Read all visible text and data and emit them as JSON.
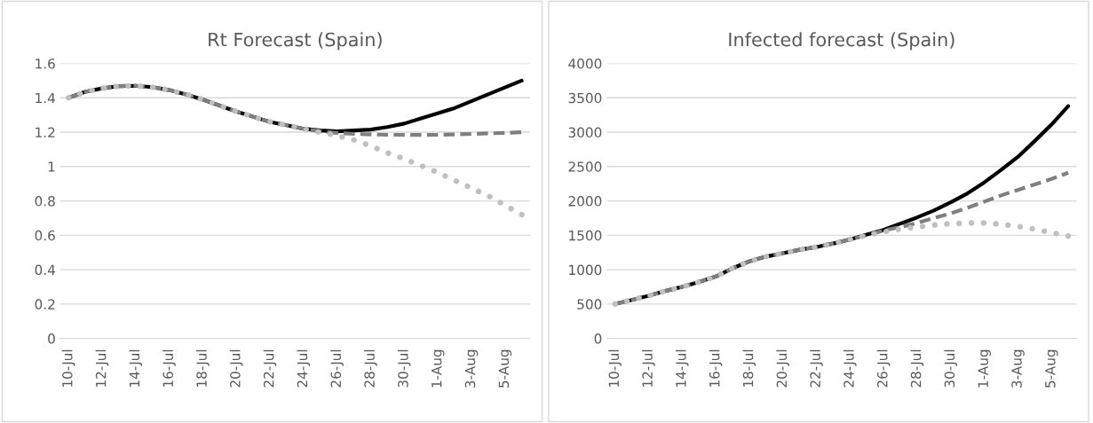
{
  "chart_data": [
    {
      "type": "line",
      "title": "Rt Forecast (Spain)",
      "categories": [
        "10-Jul",
        null,
        "12-Jul",
        null,
        "14-Jul",
        null,
        "16-Jul",
        null,
        "18-Jul",
        null,
        "20-Jul",
        null,
        "22-Jul",
        null,
        "24-Jul",
        null,
        "26-Jul",
        null,
        "28-Jul",
        null,
        "30-Jul",
        null,
        "1-Aug",
        null,
        "3-Aug",
        null,
        "5-Aug",
        null
      ],
      "series": [
        {
          "color": "#000000",
          "line_style": "solid",
          "values": [
            1.4,
            1.435,
            1.455,
            1.468,
            1.47,
            1.462,
            1.445,
            1.42,
            1.39,
            1.355,
            1.32,
            1.29,
            1.26,
            1.24,
            1.22,
            1.21,
            1.205,
            1.21,
            1.215,
            1.23,
            1.25,
            1.28,
            1.31,
            1.34,
            1.38,
            1.42,
            1.46,
            1.5
          ]
        },
        {
          "color": "#7f7f7f",
          "line_style": "dashed",
          "values": [
            1.4,
            1.435,
            1.455,
            1.468,
            1.47,
            1.462,
            1.445,
            1.42,
            1.39,
            1.355,
            1.32,
            1.29,
            1.26,
            1.24,
            1.22,
            1.205,
            1.195,
            1.19,
            1.187,
            1.185,
            1.184,
            1.184,
            1.185,
            1.187,
            1.19,
            1.193,
            1.196,
            1.2
          ]
        },
        {
          "color": "#bfbfbf",
          "line_style": "dotted",
          "values": [
            1.4,
            1.435,
            1.455,
            1.468,
            1.47,
            1.462,
            1.445,
            1.42,
            1.39,
            1.355,
            1.32,
            1.29,
            1.26,
            1.24,
            1.22,
            1.2,
            1.18,
            1.155,
            1.12,
            1.08,
            1.045,
            1.005,
            0.965,
            0.92,
            0.875,
            0.83,
            0.775,
            0.72
          ]
        }
      ],
      "ylim": [
        0,
        1.6
      ],
      "yticks": [
        0,
        0.2,
        0.4,
        0.6,
        0.8,
        1,
        1.2,
        1.4,
        1.6
      ],
      "grid": "y"
    },
    {
      "type": "line",
      "title": "Infected forecast (Spain)",
      "categories": [
        "10-Jul",
        null,
        "12-Jul",
        null,
        "14-Jul",
        null,
        "16-Jul",
        null,
        "18-Jul",
        null,
        "20-Jul",
        null,
        "22-Jul",
        null,
        "24-Jul",
        null,
        "26-Jul",
        null,
        "28-Jul",
        null,
        "30-Jul",
        null,
        "1-Aug",
        null,
        "3-Aug",
        null,
        "5-Aug",
        null
      ],
      "series": [
        {
          "color": "#000000",
          "line_style": "solid",
          "values": [
            500,
            560,
            620,
            690,
            750,
            820,
            900,
            1020,
            1120,
            1190,
            1240,
            1290,
            1330,
            1380,
            1440,
            1510,
            1580,
            1670,
            1760,
            1860,
            1980,
            2110,
            2270,
            2450,
            2640,
            2870,
            3110,
            3380
          ]
        },
        {
          "color": "#7f7f7f",
          "line_style": "dashed",
          "values": [
            500,
            560,
            620,
            690,
            750,
            820,
            900,
            1020,
            1120,
            1190,
            1240,
            1290,
            1330,
            1380,
            1440,
            1500,
            1570,
            1620,
            1680,
            1750,
            1820,
            1900,
            1990,
            2080,
            2160,
            2240,
            2320,
            2410
          ]
        },
        {
          "color": "#bfbfbf",
          "line_style": "dotted",
          "values": [
            500,
            560,
            620,
            690,
            750,
            820,
            900,
            1020,
            1120,
            1190,
            1240,
            1290,
            1330,
            1380,
            1440,
            1500,
            1550,
            1590,
            1620,
            1650,
            1670,
            1680,
            1680,
            1660,
            1630,
            1590,
            1540,
            1490
          ]
        }
      ],
      "ylim": [
        0,
        4000
      ],
      "yticks": [
        0,
        500,
        1000,
        1500,
        2000,
        2500,
        3000,
        3500,
        4000
      ],
      "grid": "y"
    }
  ]
}
